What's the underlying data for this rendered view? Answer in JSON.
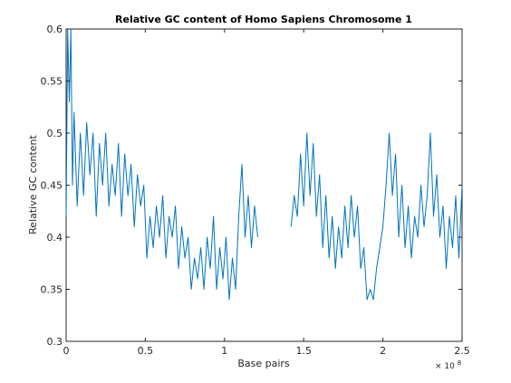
{
  "chart_data": {
    "type": "line",
    "title": "Relative GC content of Homo Sapiens Chromosome 1",
    "xlabel": "Base pairs",
    "ylabel": "Relative GC content",
    "x_exponent_label": "× 10",
    "x_exponent_power": "8",
    "xlim": [
      0,
      250000000
    ],
    "ylim": [
      0.3,
      0.6
    ],
    "grid": false,
    "legend": "none",
    "line_color": "#0072BD",
    "xticks": [
      {
        "value": 0,
        "label": "0"
      },
      {
        "value": 50000000,
        "label": "0.5"
      },
      {
        "value": 100000000,
        "label": "1"
      },
      {
        "value": 150000000,
        "label": "1.5"
      },
      {
        "value": 200000000,
        "label": "2"
      },
      {
        "value": 250000000,
        "label": "2.5"
      }
    ],
    "yticks": [
      {
        "value": 0.3,
        "label": "0.3"
      },
      {
        "value": 0.35,
        "label": "0.35"
      },
      {
        "value": 0.4,
        "label": "0.4"
      },
      {
        "value": 0.45,
        "label": "0.45"
      },
      {
        "value": 0.5,
        "label": "0.5"
      },
      {
        "value": 0.55,
        "label": "0.55"
      },
      {
        "value": 0.6,
        "label": "0.6"
      }
    ],
    "series": [
      {
        "x": [
          0,
          1000000,
          2000000,
          3000000,
          4000000,
          5000000,
          7000000,
          9000000,
          11000000,
          13000000,
          15000000,
          17000000,
          19000000,
          21000000,
          23000000,
          25000000,
          27000000,
          29000000,
          31000000,
          33000000,
          35000000,
          37000000,
          39000000,
          41000000,
          43000000,
          45000000,
          47000000,
          49000000,
          51000000,
          53000000,
          55000000,
          57000000,
          59000000,
          61000000,
          63000000,
          65000000,
          67000000,
          69000000,
          71000000,
          73000000,
          75000000,
          77000000,
          79000000,
          81000000,
          83000000,
          85000000,
          87000000,
          89000000,
          91000000,
          93000000,
          95000000,
          97000000,
          99000000,
          101000000,
          103000000,
          105000000,
          107000000,
          109000000,
          111000000,
          113000000,
          115000000,
          117000000,
          119000000,
          121000000
        ],
        "y": [
          0.42,
          0.6,
          0.53,
          0.6,
          0.45,
          0.52,
          0.43,
          0.5,
          0.44,
          0.51,
          0.46,
          0.5,
          0.42,
          0.49,
          0.45,
          0.5,
          0.43,
          0.47,
          0.44,
          0.49,
          0.42,
          0.48,
          0.44,
          0.47,
          0.41,
          0.46,
          0.43,
          0.45,
          0.38,
          0.42,
          0.39,
          0.43,
          0.4,
          0.44,
          0.38,
          0.42,
          0.4,
          0.43,
          0.37,
          0.41,
          0.38,
          0.4,
          0.35,
          0.38,
          0.36,
          0.39,
          0.35,
          0.4,
          0.37,
          0.42,
          0.35,
          0.39,
          0.36,
          0.4,
          0.34,
          0.38,
          0.35,
          0.42,
          0.47,
          0.4,
          0.44,
          0.39,
          0.43,
          0.4
        ]
      },
      {
        "x": [
          142000000,
          144000000,
          146000000,
          148000000,
          150000000,
          152000000,
          154000000,
          156000000,
          158000000,
          160000000,
          162000000,
          164000000,
          166000000,
          168000000,
          170000000,
          172000000,
          174000000,
          176000000,
          178000000,
          180000000,
          182000000,
          184000000,
          186000000,
          188000000,
          190000000,
          192000000,
          194000000,
          196000000,
          198000000,
          200000000,
          202000000,
          204000000,
          206000000,
          208000000,
          210000000,
          212000000,
          214000000,
          216000000,
          218000000,
          220000000,
          222000000,
          224000000,
          226000000,
          228000000,
          230000000,
          232000000,
          234000000,
          236000000,
          238000000,
          240000000,
          242000000,
          244000000,
          246000000,
          248000000,
          250000000
        ],
        "y": [
          0.41,
          0.44,
          0.42,
          0.48,
          0.43,
          0.5,
          0.44,
          0.49,
          0.42,
          0.46,
          0.39,
          0.44,
          0.38,
          0.42,
          0.37,
          0.41,
          0.38,
          0.43,
          0.39,
          0.44,
          0.4,
          0.43,
          0.37,
          0.39,
          0.34,
          0.35,
          0.34,
          0.37,
          0.39,
          0.41,
          0.45,
          0.5,
          0.44,
          0.48,
          0.4,
          0.45,
          0.39,
          0.43,
          0.38,
          0.42,
          0.4,
          0.45,
          0.41,
          0.44,
          0.5,
          0.42,
          0.46,
          0.4,
          0.43,
          0.37,
          0.42,
          0.39,
          0.44,
          0.38,
          0.45
        ]
      }
    ]
  }
}
